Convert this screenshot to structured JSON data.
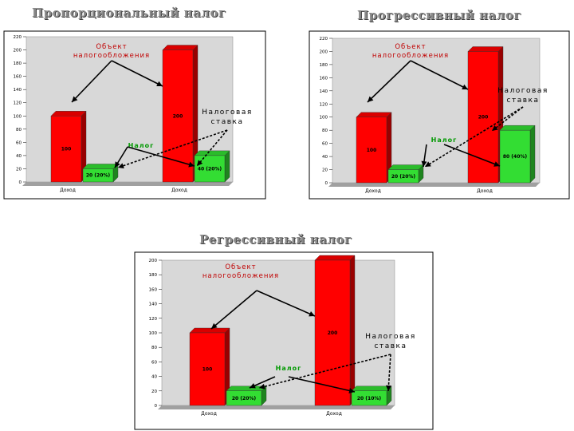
{
  "chart_data": [
    {
      "type": "bar",
      "title": "Пропорциональный налог",
      "categories": [
        "Доход",
        "Доход"
      ],
      "series": [
        {
          "values": [
            100,
            200
          ],
          "color": "#ff0000"
        },
        {
          "values": [
            20,
            40
          ],
          "color": "#33dd33"
        }
      ],
      "ylim": [
        0,
        220
      ],
      "yticks": [
        0,
        20,
        40,
        60,
        80,
        100,
        120,
        140,
        160,
        180,
        200,
        220
      ],
      "value_labels": [
        [
          "100",
          "200"
        ],
        [
          "20 (20%)",
          "40 (20%)"
        ]
      ],
      "annotations": {
        "object": [
          "Объект",
          "налогообложения"
        ],
        "tax": "Налог",
        "rate": [
          "Налоговая",
          "ставка"
        ]
      }
    },
    {
      "type": "bar",
      "title": "Прогрессивный налог",
      "categories": [
        "Доход",
        "Доход"
      ],
      "series": [
        {
          "values": [
            100,
            200
          ],
          "color": "#ff0000"
        },
        {
          "values": [
            20,
            80
          ],
          "color": "#33dd33"
        }
      ],
      "ylim": [
        0,
        220
      ],
      "yticks": [
        0,
        20,
        40,
        60,
        80,
        100,
        120,
        140,
        160,
        180,
        200,
        220
      ],
      "value_labels": [
        [
          "100",
          "200"
        ],
        [
          "20 (20%)",
          "80 (40%)"
        ]
      ],
      "annotations": {
        "object": [
          "Объект",
          "налогообложения"
        ],
        "tax": "Налог",
        "rate": [
          "Налоговая",
          "ставка"
        ]
      }
    },
    {
      "type": "bar",
      "title": "Регрессивный налог",
      "categories": [
        "Доход",
        "Доход"
      ],
      "series": [
        {
          "values": [
            100,
            200
          ],
          "color": "#ff0000"
        },
        {
          "values": [
            20,
            20
          ],
          "color": "#33dd33"
        }
      ],
      "ylim": [
        0,
        200
      ],
      "yticks": [
        0,
        20,
        40,
        60,
        80,
        100,
        120,
        140,
        160,
        180,
        200
      ],
      "value_labels": [
        [
          "100",
          "200"
        ],
        [
          "20 (20%)",
          "20 (10%)"
        ]
      ],
      "annotations": {
        "object": [
          "Объект",
          "налогообложения"
        ],
        "tax": "Налог",
        "rate": [
          "Налоговая",
          "ставка"
        ]
      }
    }
  ]
}
